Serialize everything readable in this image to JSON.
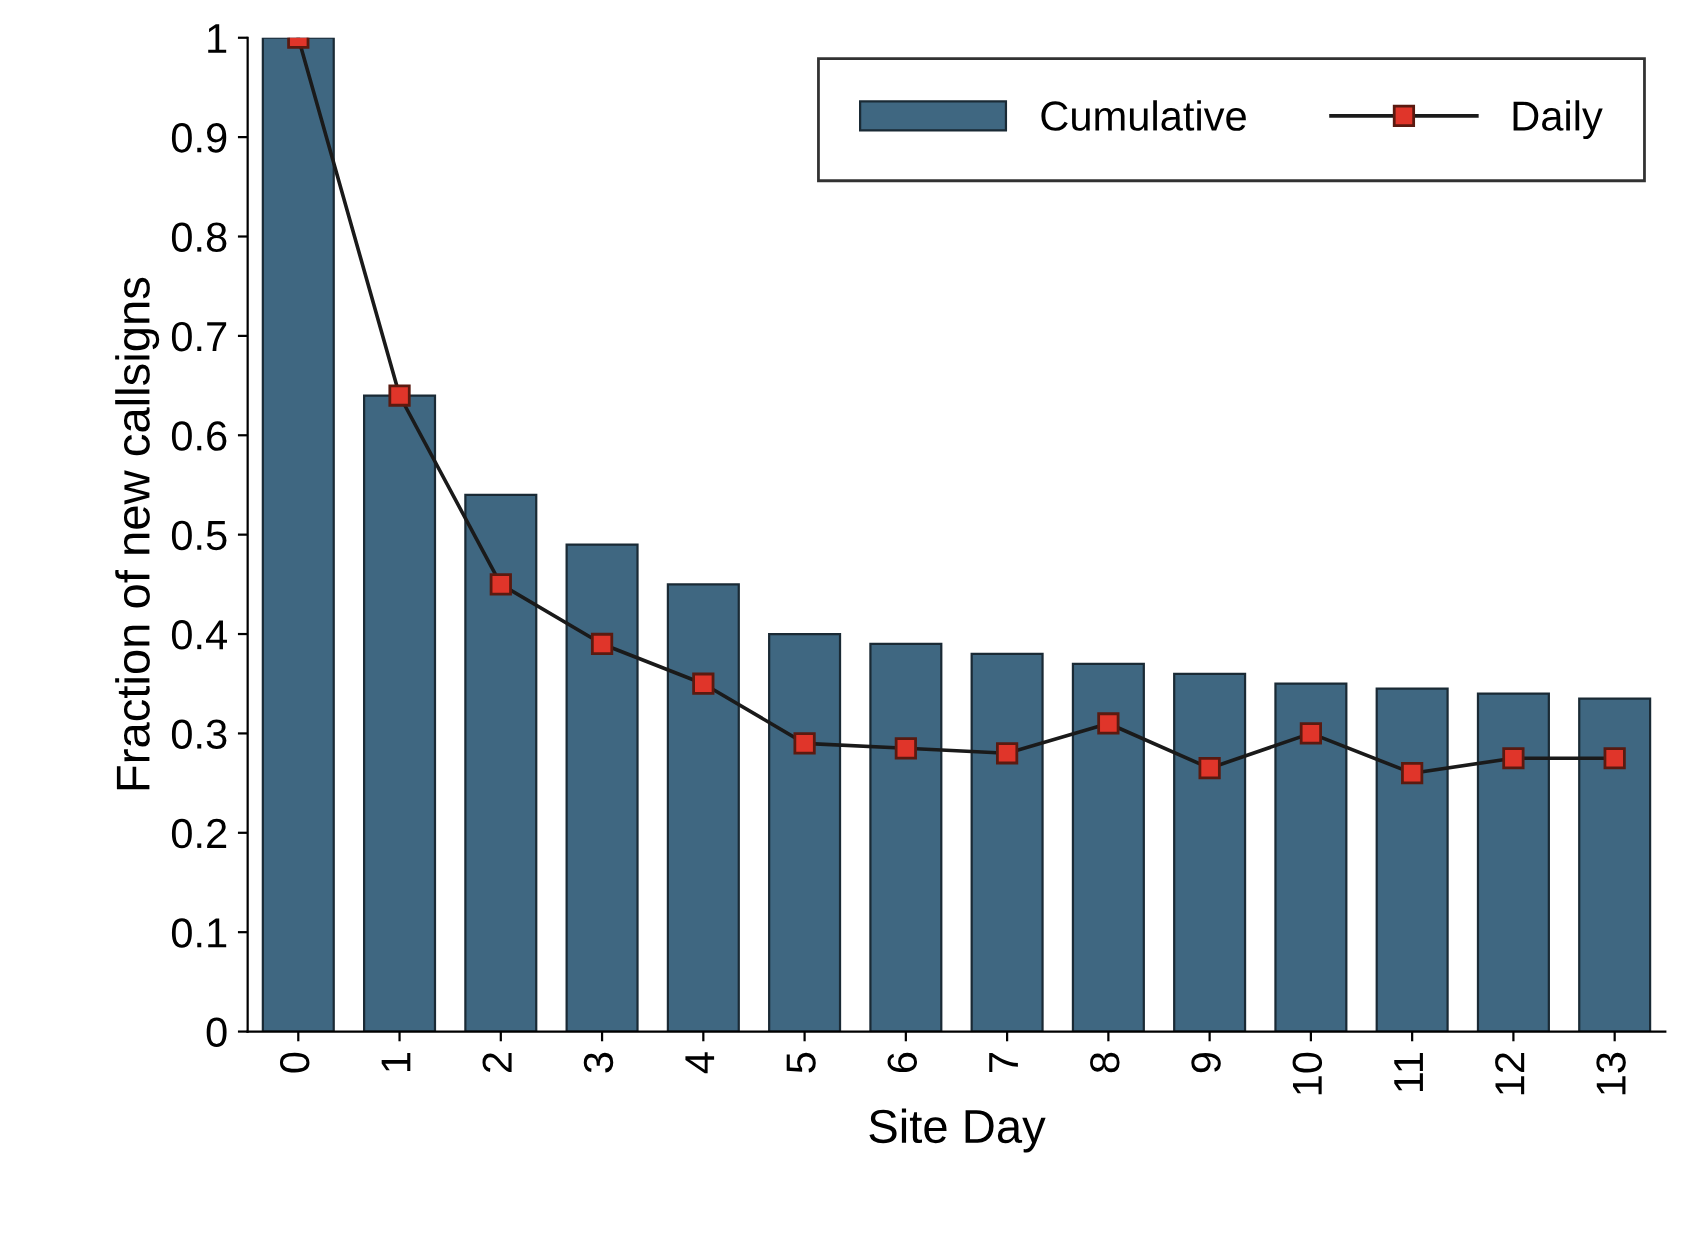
{
  "chart_data": {
    "type": "bar",
    "xlabel": "Site Day",
    "ylabel": "Fraction of new callsigns",
    "categories": [
      "0",
      "1",
      "2",
      "3",
      "4",
      "5",
      "6",
      "7",
      "8",
      "9",
      "10",
      "11",
      "12",
      "13"
    ],
    "series": [
      {
        "name": "Cumulative",
        "color": "#3f6781",
        "values": [
          1.0,
          0.64,
          0.54,
          0.49,
          0.45,
          0.4,
          0.39,
          0.38,
          0.37,
          0.36,
          0.35,
          0.345,
          0.34,
          0.335
        ]
      },
      {
        "name": "Daily",
        "type": "line",
        "color": "#e0352a",
        "marker": "square",
        "line_style": "solid",
        "values": [
          1.0,
          0.64,
          0.45,
          0.39,
          0.35,
          0.29,
          0.285,
          0.28,
          0.31,
          0.265,
          0.3,
          0.26,
          0.275,
          0.275
        ]
      }
    ],
    "ylim": [
      0,
      1
    ],
    "yticks": [
      0,
      0.1,
      0.2,
      0.3,
      0.4,
      0.5,
      0.6,
      0.7,
      0.8,
      0.9,
      1
    ],
    "legend": "top right",
    "grid": false
  }
}
